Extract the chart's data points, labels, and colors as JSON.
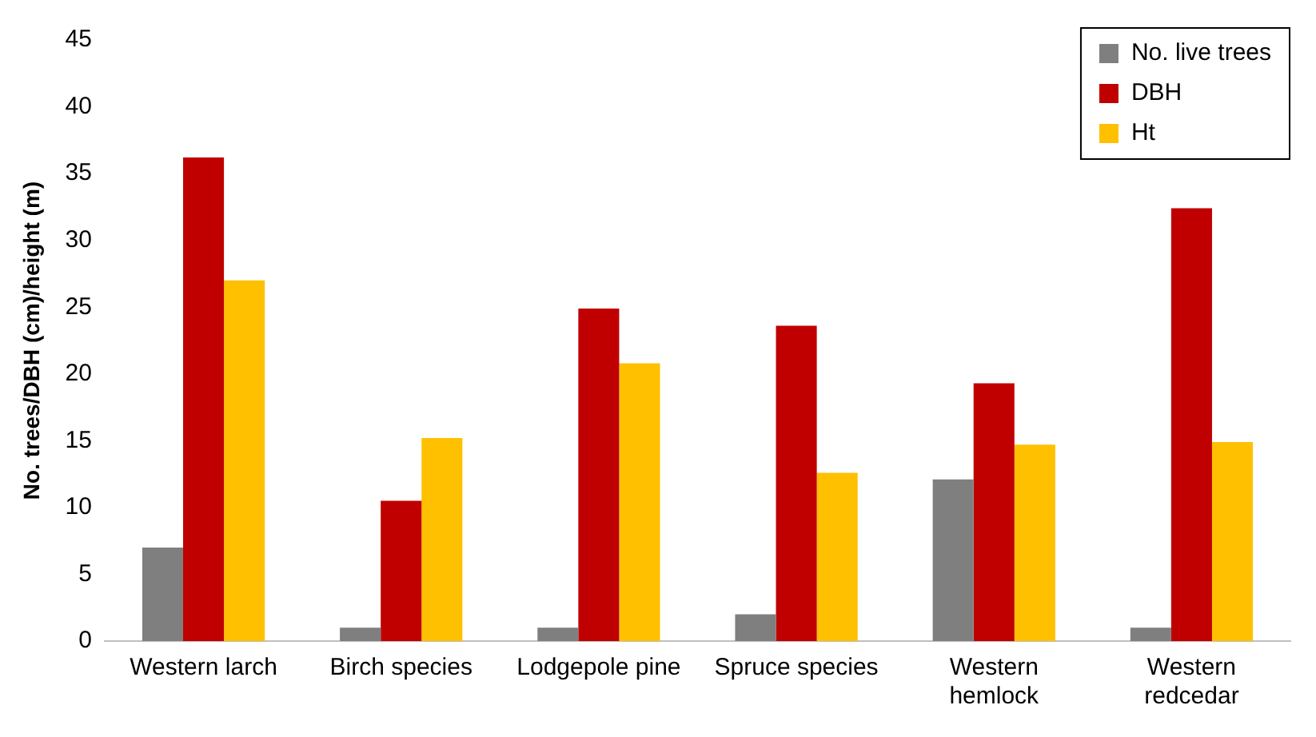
{
  "chart_data": {
    "type": "bar",
    "ylabel": "No. trees/DBH (cm)/height (m)",
    "categories": [
      "Western larch",
      "Birch species",
      "Lodgepole pine",
      "Spruce species",
      "Western hemlock",
      "Western redcedar"
    ],
    "series": [
      {
        "name": "No. live trees",
        "color": "#7f7f7f",
        "values": [
          7,
          1,
          1,
          2,
          12.1,
          1
        ]
      },
      {
        "name": "DBH",
        "color": "#c00000",
        "values": [
          36.2,
          10.5,
          24.9,
          23.6,
          19.3,
          32.4
        ]
      },
      {
        "name": "Ht",
        "color": "#ffc000",
        "values": [
          27,
          15.2,
          20.8,
          12.6,
          14.7,
          14.9
        ]
      }
    ],
    "ylim": [
      0,
      45
    ],
    "yticks": [
      0,
      5,
      10,
      15,
      20,
      25,
      30,
      35,
      40,
      45
    ],
    "grid": false,
    "legend": "top right"
  }
}
